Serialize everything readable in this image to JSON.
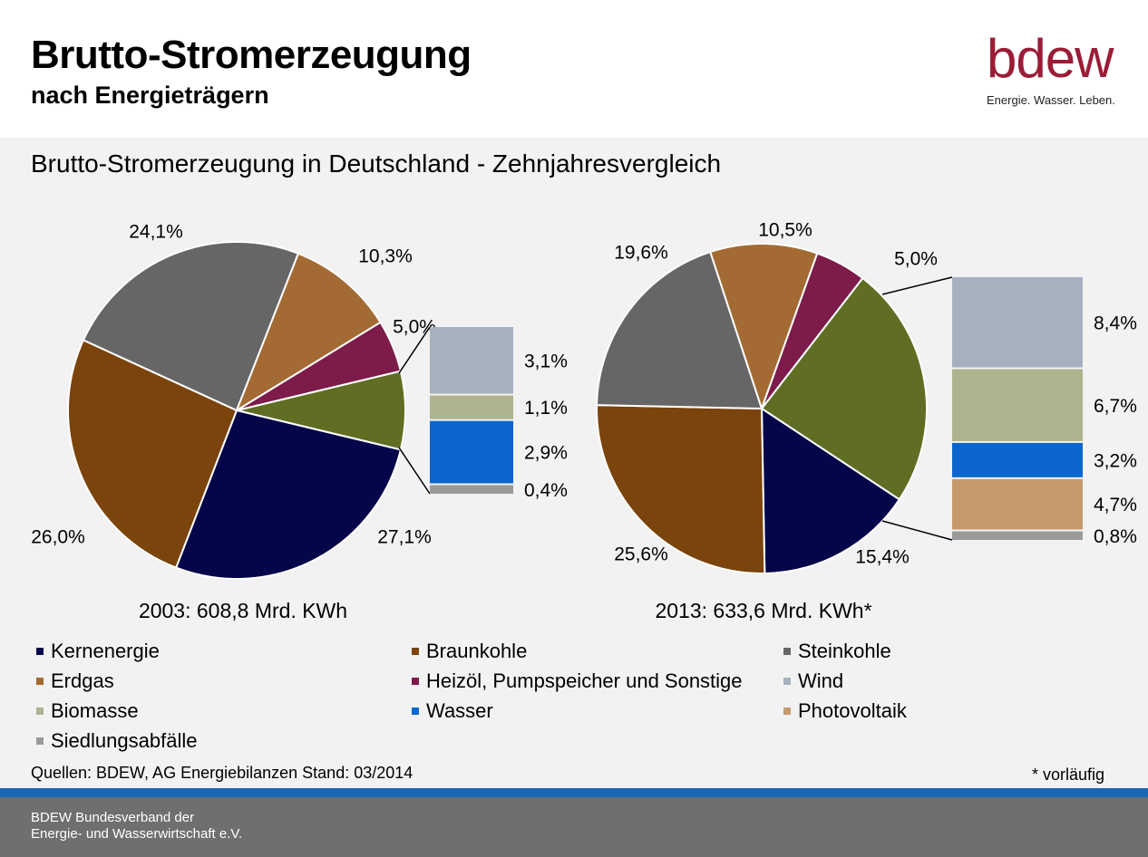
{
  "header": {
    "title": "Brutto-Stromerzeugung",
    "subtitle": "nach Energieträgern",
    "logo_text": "bdew",
    "logo_tagline": "Energie. Wasser. Leben."
  },
  "colors": {
    "kernenergie": "#05054a",
    "braunkohle": "#7b440c",
    "steinkohle": "#666666",
    "erdgas": "#a36b33",
    "heizoel": "#7d1b4a",
    "wind": "#a6b1c0",
    "biomasse": "#afb38f",
    "wasser": "#0a66cc",
    "photovoltaik": "#c49a6e",
    "siedlungsabfaelle": "#9a9a9a",
    "erneuerbare": "#5f6e22",
    "logo": "#9b1c36",
    "footer_stripe": "#1a66b3",
    "footer": "#6f6f6f"
  },
  "chart_data": [
    {
      "type": "pie",
      "title": "Brutto-Stromerzeugung in Deutschland - Zehnjahresvergleich",
      "caption": "2003: 608,8 Mrd. KWh",
      "slices": [
        {
          "key": "erneuerbare",
          "value": 7.5,
          "label": ""
        },
        {
          "key": "kernenergie",
          "value": 27.1,
          "label": "27,1%"
        },
        {
          "key": "braunkohle",
          "value": 26.0,
          "label": "26,0%"
        },
        {
          "key": "steinkohle",
          "value": 24.1,
          "label": "24,1%"
        },
        {
          "key": "erdgas",
          "value": 10.3,
          "label": "10,3%"
        },
        {
          "key": "heizoel",
          "value": 5.0,
          "label": "5,0%"
        }
      ],
      "breakdown": [
        {
          "key": "wind",
          "value": 3.1,
          "label": "3,1%"
        },
        {
          "key": "biomasse",
          "value": 1.1,
          "label": "1,1%"
        },
        {
          "key": "wasser",
          "value": 2.9,
          "label": "2,9%"
        },
        {
          "key": "siedlungsabfaelle",
          "value": 0.4,
          "label": "0,4%"
        }
      ]
    },
    {
      "type": "pie",
      "caption": "2013: 633,6 Mrd. KWh*",
      "slices": [
        {
          "key": "erneuerbare",
          "value": 23.8,
          "label": ""
        },
        {
          "key": "kernenergie",
          "value": 15.4,
          "label": "15,4%"
        },
        {
          "key": "braunkohle",
          "value": 25.6,
          "label": "25,6%"
        },
        {
          "key": "steinkohle",
          "value": 19.6,
          "label": "19,6%"
        },
        {
          "key": "erdgas",
          "value": 10.5,
          "label": "10,5%"
        },
        {
          "key": "heizoel",
          "value": 5.0,
          "label": "5,0%"
        }
      ],
      "breakdown": [
        {
          "key": "wind",
          "value": 8.4,
          "label": "8,4%"
        },
        {
          "key": "biomasse",
          "value": 6.7,
          "label": "6,7%"
        },
        {
          "key": "wasser",
          "value": 3.2,
          "label": "3,2%"
        },
        {
          "key": "photovoltaik",
          "value": 4.7,
          "label": "4,7%"
        },
        {
          "key": "siedlungsabfaelle",
          "value": 0.8,
          "label": "0,8%"
        }
      ]
    }
  ],
  "legend": [
    {
      "key": "kernenergie",
      "label": "Kernenergie"
    },
    {
      "key": "braunkohle",
      "label": "Braunkohle"
    },
    {
      "key": "steinkohle",
      "label": "Steinkohle"
    },
    {
      "key": "erdgas",
      "label": "Erdgas"
    },
    {
      "key": "heizoel",
      "label": "Heizöl, Pumpspeicher und Sonstige"
    },
    {
      "key": "wind",
      "label": "Wind"
    },
    {
      "key": "biomasse",
      "label": "Biomasse"
    },
    {
      "key": "wasser",
      "label": "Wasser"
    },
    {
      "key": "photovoltaik",
      "label": "Photovoltaik"
    },
    {
      "key": "siedlungsabfaelle",
      "label": "Siedlungsabfälle"
    }
  ],
  "sources": "Quellen: BDEW,  AG Energiebilanzen Stand: 03/2014",
  "footnote": "* vorläufig",
  "footer": {
    "line1": "BDEW Bundesverband der",
    "line2": "Energie- und Wasserwirtschaft e.V."
  }
}
